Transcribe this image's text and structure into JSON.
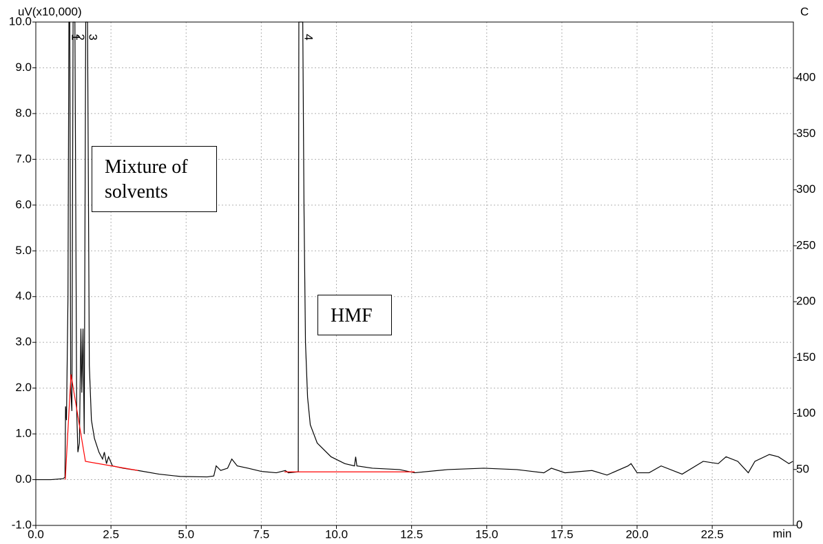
{
  "chart_data": {
    "type": "line",
    "y_label": "uV(x10,000)",
    "y2_label": "C",
    "x_label": "min",
    "x": [
      0,
      0.5,
      0.9,
      0.97,
      0.99,
      1.02,
      1.07,
      1.1,
      1.13,
      1.16,
      1.2,
      1.24,
      1.3,
      1.36,
      1.4,
      1.45,
      1.5,
      1.53,
      1.57,
      1.61,
      1.66,
      1.72,
      1.78,
      1.85,
      1.95,
      2.1,
      2.22,
      2.28,
      2.35,
      2.42,
      2.55,
      2.9,
      3.4,
      4.1,
      4.8,
      5.7,
      5.92,
      6.0,
      6.15,
      6.38,
      6.52,
      6.7,
      7.06,
      7.5,
      8.0,
      8.3,
      8.4,
      8.73,
      8.75,
      8.88,
      8.92,
      8.97,
      9.04,
      9.13,
      9.36,
      9.82,
      10.28,
      10.6,
      10.64,
      10.68,
      11.2,
      12.1,
      12.6,
      13.7,
      14.9,
      16.0,
      16.9,
      17.15,
      17.6,
      18.5,
      19.0,
      19.7,
      19.8,
      20.0,
      20.4,
      20.8,
      21.5,
      22.2,
      22.7,
      22.96,
      23.35,
      23.7,
      23.92,
      24.4,
      24.7,
      25.05,
      25.18
    ],
    "values": [
      0,
      0.0,
      0.02,
      0.05,
      1.6,
      1.3,
      4.0,
      10.0,
      10.0,
      2.0,
      1.5,
      10.0,
      10.0,
      1.5,
      0.6,
      0.8,
      3.3,
      1.9,
      3.3,
      1.0,
      10.0,
      10.0,
      2.5,
      1.3,
      0.9,
      0.6,
      0.45,
      0.6,
      0.35,
      0.5,
      0.3,
      0.25,
      0.2,
      0.12,
      0.07,
      0.06,
      0.08,
      0.3,
      0.2,
      0.25,
      0.45,
      0.3,
      0.25,
      0.18,
      0.15,
      0.2,
      0.15,
      0.17,
      10.0,
      10.0,
      6.0,
      3.0,
      1.8,
      1.2,
      0.8,
      0.5,
      0.35,
      0.3,
      0.5,
      0.3,
      0.25,
      0.22,
      0.15,
      0.22,
      0.25,
      0.22,
      0.15,
      0.25,
      0.15,
      0.2,
      0.1,
      0.3,
      0.35,
      0.15,
      0.15,
      0.3,
      0.12,
      0.4,
      0.35,
      0.5,
      0.4,
      0.15,
      0.4,
      0.55,
      0.5,
      0.35,
      0.4
    ],
    "color": "#000000",
    "baselines": [
      {
        "x": [
          0.98,
          1.17,
          1.65,
          3.4
        ],
        "values": [
          0.0,
          2.3,
          0.4,
          0.2
        ],
        "color": "#ff0000"
      },
      {
        "x": [
          8.27,
          12.6
        ],
        "values": [
          0.17,
          0.17
        ],
        "color": "#ff0000"
      }
    ],
    "peaks": [
      {
        "label": "1",
        "time": 1.12
      },
      {
        "label": "2",
        "time": 1.27
      },
      {
        "label": "3",
        "time": 1.69
      },
      {
        "label": "4",
        "time": 8.86
      }
    ],
    "annotations": [
      "Mixture of solvents",
      "HMF"
    ],
    "xlim": [
      0,
      25.2
    ],
    "xticks": [
      {
        "value": 0,
        "label": "0.0"
      },
      2.5,
      {
        "value": 5,
        "label": "5.0"
      },
      7.5,
      {
        "value": 10,
        "label": "10.0"
      },
      12.5,
      {
        "value": 15,
        "label": "15.0"
      },
      17.5,
      {
        "value": 20,
        "label": "20.0"
      },
      22.5
    ],
    "ylim": [
      -1,
      10
    ],
    "yticks": [
      {
        "value": -1,
        "label": "-1.0"
      },
      {
        "value": 0,
        "label": "0.0"
      },
      {
        "value": 1,
        "label": "1.0"
      },
      {
        "value": 2,
        "label": "2.0"
      },
      {
        "value": 3,
        "label": "3.0"
      },
      {
        "value": 4,
        "label": "4.0"
      },
      {
        "value": 5,
        "label": "5.0"
      },
      {
        "value": 6,
        "label": "6.0"
      },
      {
        "value": 7,
        "label": "7.0"
      },
      {
        "value": 8,
        "label": "8.0"
      },
      {
        "value": 9,
        "label": "9.0"
      },
      {
        "value": 10,
        "label": "10.0"
      }
    ],
    "y2lim": [
      0,
      450
    ],
    "y2ticks": [
      0,
      50,
      100,
      150,
      200,
      250,
      300,
      350,
      400
    ],
    "grid": true
  }
}
